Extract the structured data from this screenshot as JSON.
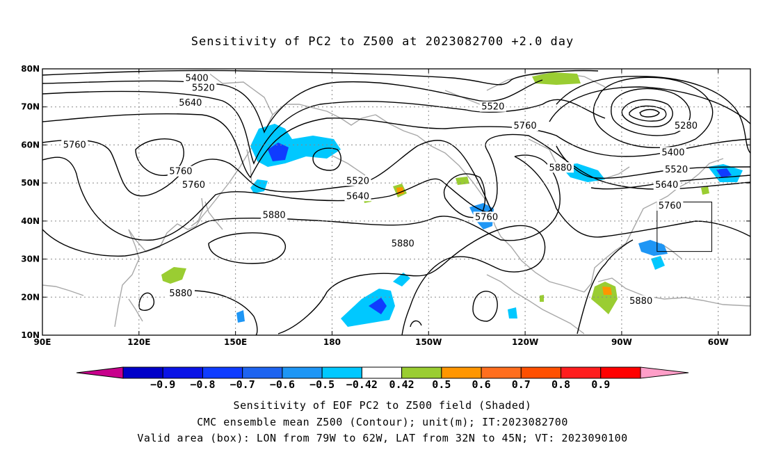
{
  "title": "Sensitivity of PC2 to Z500 at 2023082700 +2.0 day",
  "map": {
    "lon_range": [
      90,
      310
    ],
    "lat_range": [
      10,
      80
    ],
    "lon_ticks": [
      {
        "lon": 90,
        "label": "90E"
      },
      {
        "lon": 120,
        "label": "120E"
      },
      {
        "lon": 150,
        "label": "150E"
      },
      {
        "lon": 180,
        "label": "180"
      },
      {
        "lon": 210,
        "label": "150W"
      },
      {
        "lon": 240,
        "label": "120W"
      },
      {
        "lon": 270,
        "label": "90W"
      },
      {
        "lon": 300,
        "label": "60W"
      }
    ],
    "lat_ticks": [
      {
        "lat": 10,
        "label": "10N"
      },
      {
        "lat": 20,
        "label": "20N"
      },
      {
        "lat": 30,
        "label": "30N"
      },
      {
        "lat": 40,
        "label": "40N"
      },
      {
        "lat": 50,
        "label": "50N"
      },
      {
        "lat": 60,
        "label": "60N"
      },
      {
        "lat": 70,
        "label": "70N"
      },
      {
        "lat": 80,
        "label": "80N"
      }
    ],
    "grid": "dotted",
    "valid_box": {
      "lon_west": -79,
      "lon_east": -62,
      "lat_south": 32,
      "lat_north": 45
    },
    "contour_labels": [
      {
        "text": "5400",
        "lon": 138,
        "lat": 77.5
      },
      {
        "text": "5520",
        "lon": 140,
        "lat": 75
      },
      {
        "text": "5640",
        "lon": 136,
        "lat": 71
      },
      {
        "text": "5760",
        "lon": 100,
        "lat": 60
      },
      {
        "text": "5760",
        "lon": 133,
        "lat": 53
      },
      {
        "text": "5760",
        "lon": 137,
        "lat": 49.5
      },
      {
        "text": "5880",
        "lon": 162,
        "lat": 41.5
      },
      {
        "text": "5880",
        "lon": 133,
        "lat": 21
      },
      {
        "text": "5880",
        "lon": 202,
        "lat": 34
      },
      {
        "text": "5880",
        "lon": 251,
        "lat": 54
      },
      {
        "text": "5880",
        "lon": 276,
        "lat": 19
      },
      {
        "text": "5760",
        "lon": 228,
        "lat": 41
      },
      {
        "text": "5760",
        "lon": 240,
        "lat": 65
      },
      {
        "text": "5760",
        "lon": 285,
        "lat": 44
      },
      {
        "text": "5640",
        "lon": 188,
        "lat": 46.5
      },
      {
        "text": "5640",
        "lon": 284,
        "lat": 49.5
      },
      {
        "text": "5520",
        "lon": 188,
        "lat": 50.5
      },
      {
        "text": "5520",
        "lon": 230,
        "lat": 70
      },
      {
        "text": "5520",
        "lon": 287,
        "lat": 53.5
      },
      {
        "text": "5400",
        "lon": 286,
        "lat": 58
      },
      {
        "text": "5280",
        "lon": 290,
        "lat": 65
      }
    ],
    "shading_colors": {
      "neg_extreme": "#c8008c",
      "neg_09": "#0000c8",
      "neg_08": "#0a14e6",
      "neg_07": "#0f3cff",
      "neg_06": "#1e64f0",
      "neg_05": "#1e96f5",
      "neg_042": "#00c8ff",
      "neutral": "#ffffff",
      "pos_042": "#9acd32",
      "pos_05": "#ff9600",
      "pos_06": "#ff6e1e",
      "pos_07": "#ff5000",
      "pos_08": "#ff1e1e",
      "pos_extreme": "#ff9ec8"
    }
  },
  "colorbar": {
    "colors": [
      "#0000c8",
      "#0a14e6",
      "#0f3cff",
      "#1e64f0",
      "#1e96f5",
      "#00c8ff",
      "#ffffff",
      "#9acd32",
      "#ff9600",
      "#ff6e1e",
      "#ff5000",
      "#ff1e1e",
      "#ff0000"
    ],
    "left_tip_color": "#c8008c",
    "right_tip_color": "#ff9ec8",
    "labels": [
      "−0.9",
      "−0.8",
      "−0.7",
      "−0.6",
      "−0.5",
      "−0.42",
      "0.42",
      "0.5",
      "0.6",
      "0.7",
      "0.8",
      "0.9"
    ]
  },
  "captions": {
    "line1": "Sensitivity of EOF PC2 to Z500 field (Shaded)",
    "line2": "CMC ensemble mean Z500 (Contour); unit(m); IT:2023082700",
    "line3": "Valid area (box): LON from 79W to 62W, LAT from 32N to 45N; VT: 2023090100"
  }
}
